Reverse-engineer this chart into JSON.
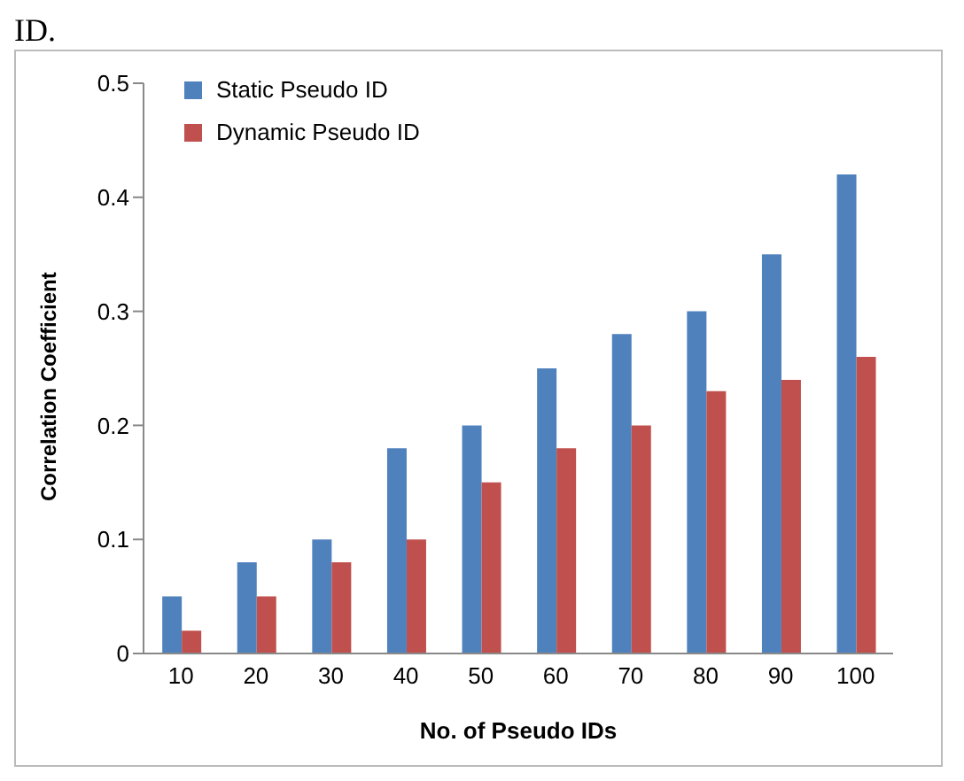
{
  "chart_data": {
    "type": "bar",
    "xlabel": "No. of Pseudo IDs",
    "ylabel": "Correlation Coefficient",
    "annotations": [
      "ID."
    ],
    "categories": [
      "10",
      "20",
      "30",
      "40",
      "50",
      "60",
      "70",
      "80",
      "90",
      "100"
    ],
    "series": [
      {
        "name": "Static Pseudo ID",
        "color": "#4f81bd",
        "values": [
          0.05,
          0.08,
          0.1,
          0.18,
          0.2,
          0.25,
          0.28,
          0.3,
          0.35,
          0.42
        ]
      },
      {
        "name": "Dynamic Pseudo ID",
        "color": "#c0504d",
        "values": [
          0.02,
          0.05,
          0.08,
          0.1,
          0.15,
          0.18,
          0.2,
          0.23,
          0.24,
          0.26
        ]
      }
    ],
    "ylim": [
      0,
      0.5
    ],
    "yticks": [
      0,
      0.1,
      0.2,
      0.3,
      0.4,
      0.5
    ],
    "legend": "top left"
  }
}
